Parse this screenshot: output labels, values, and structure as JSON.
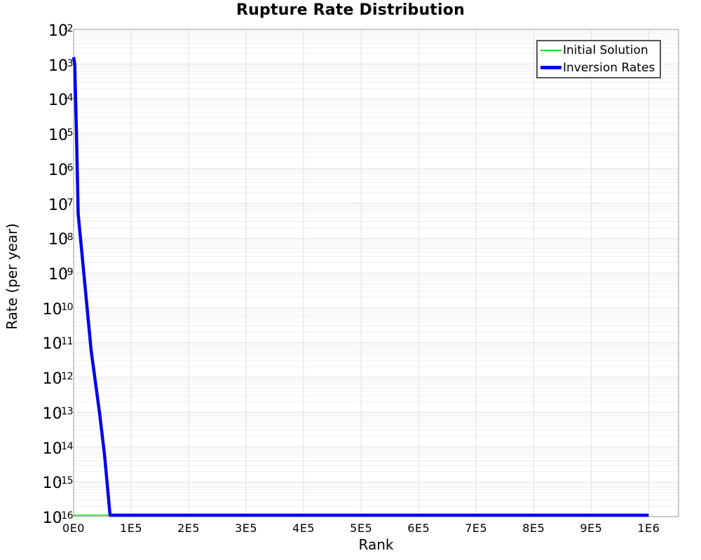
{
  "chart_data": {
    "type": "line",
    "title": "Rupture Rate Distribution",
    "xlabel": "Rank",
    "ylabel": "Rate (per year)",
    "x_axis": {
      "min": 0,
      "max": 1052000,
      "ticks": [
        {
          "value": 0,
          "label": "0E0"
        },
        {
          "value": 100000,
          "label": "1E5"
        },
        {
          "value": 200000,
          "label": "2E5"
        },
        {
          "value": 300000,
          "label": "3E5"
        },
        {
          "value": 400000,
          "label": "4E5"
        },
        {
          "value": 500000,
          "label": "5E5"
        },
        {
          "value": 600000,
          "label": "6E5"
        },
        {
          "value": 700000,
          "label": "7E5"
        },
        {
          "value": 800000,
          "label": "8E5"
        },
        {
          "value": 900000,
          "label": "9E5"
        },
        {
          "value": 1000000,
          "label": "1E6"
        }
      ]
    },
    "y_axis": {
      "scale": "log",
      "min": 1e-16,
      "max": 0.01,
      "tick_exponents": [
        -2,
        -3,
        -4,
        -5,
        -6,
        -7,
        -8,
        -9,
        -10,
        -11,
        -12,
        -13,
        -14,
        -15,
        -16
      ]
    },
    "grid": {
      "vertical_major": true,
      "horizontal_major": true,
      "horizontal_log_minor": true
    },
    "legend": {
      "position": "top-right"
    },
    "colors": {
      "grid_minor": "#efefef",
      "grid_major": "#e2e2e2",
      "frame": "#9a9a9a"
    },
    "series": [
      {
        "name": "Initial Solution",
        "color": "#00dd00",
        "width": 1.6,
        "points": [
          [
            0,
            1e-16
          ],
          [
            1000000,
            1e-16
          ]
        ]
      },
      {
        "name": "Inversion Rates",
        "color": "#0000ee",
        "width": 4.5,
        "points": [
          [
            0,
            0.0016
          ],
          [
            2000,
            0.001
          ],
          [
            5000,
            1e-05
          ],
          [
            7900,
            5e-08
          ],
          [
            15000,
            3e-09
          ],
          [
            30500,
            6e-12
          ],
          [
            45000,
            1e-13
          ],
          [
            53700,
            6e-15
          ],
          [
            63400,
            1e-16
          ],
          [
            1000000,
            1e-16
          ]
        ]
      }
    ]
  }
}
